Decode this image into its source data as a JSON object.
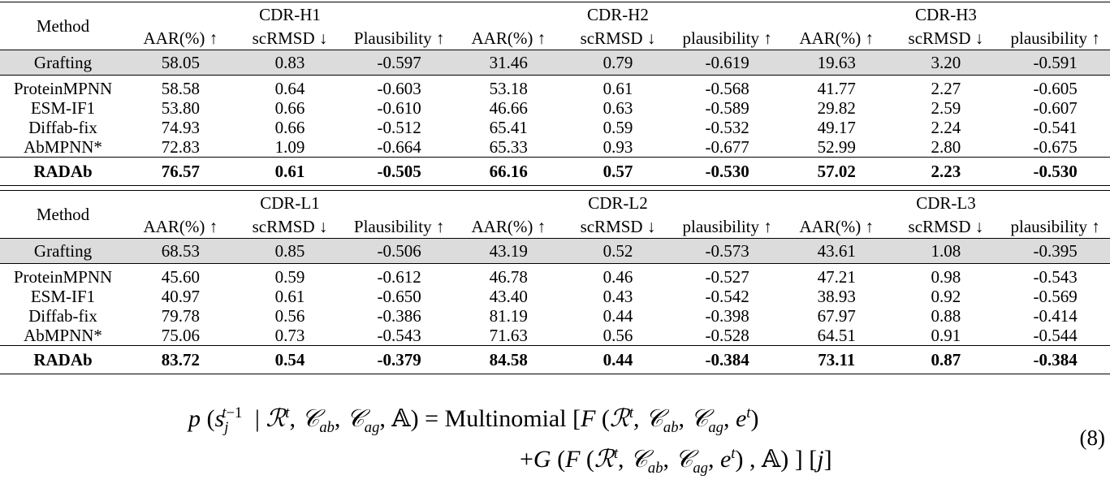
{
  "table_top": {
    "method_header": "Method",
    "groups": [
      "CDR-H1",
      "CDR-H2",
      "CDR-H3"
    ],
    "subheaders": [
      "AAR(%) ↑",
      "scRMSD ↓",
      "Plausibility ↑",
      "AAR(%) ↑",
      "scRMSD ↓",
      "plausibility ↑",
      "AAR(%) ↑",
      "scRMSD ↓",
      "plausibility ↑"
    ],
    "grafting": {
      "name": "Grafting",
      "values": [
        "58.05",
        "0.83",
        "-0.597",
        "31.46",
        "0.79",
        "-0.619",
        "19.63",
        "3.20",
        "-0.591"
      ]
    },
    "rows": [
      {
        "name": "ProteinMPNN",
        "values": [
          "58.58",
          "0.64",
          "-0.603",
          "53.18",
          "0.61",
          "-0.568",
          "41.77",
          "2.27",
          "-0.605"
        ]
      },
      {
        "name": "ESM-IF1",
        "values": [
          "53.80",
          "0.66",
          "-0.610",
          "46.66",
          "0.63",
          "-0.589",
          "29.82",
          "2.59",
          "-0.607"
        ]
      },
      {
        "name": "Diffab-fix",
        "values": [
          "74.93",
          "0.66",
          "-0.512",
          "65.41",
          "0.59",
          "-0.532",
          "49.17",
          "2.24",
          "-0.541"
        ]
      },
      {
        "name": "AbMPNN*",
        "values": [
          "72.83",
          "1.09",
          "-0.664",
          "65.33",
          "0.93",
          "-0.677",
          "52.99",
          "2.80",
          "-0.675"
        ]
      }
    ],
    "best": {
      "name": "RADAb",
      "values": [
        "76.57",
        "0.61",
        "-0.505",
        "66.16",
        "0.57",
        "-0.530",
        "57.02",
        "2.23",
        "-0.530"
      ]
    }
  },
  "table_bottom": {
    "method_header": "Method",
    "groups": [
      "CDR-L1",
      "CDR-L2",
      "CDR-L3"
    ],
    "subheaders": [
      "AAR(%) ↑",
      "scRMSD ↓",
      "Plausibility ↑",
      "AAR(%) ↑",
      "scRMSD ↓",
      "plausibility ↑",
      "AAR(%) ↑",
      "scRMSD ↓",
      "plausibility ↑"
    ],
    "grafting": {
      "name": "Grafting",
      "values": [
        "68.53",
        "0.85",
        "-0.506",
        "43.19",
        "0.52",
        "-0.573",
        "43.61",
        "1.08",
        "-0.395"
      ]
    },
    "rows": [
      {
        "name": "ProteinMPNN",
        "values": [
          "45.60",
          "0.59",
          "-0.612",
          "46.78",
          "0.46",
          "-0.527",
          "47.21",
          "0.98",
          "-0.543"
        ]
      },
      {
        "name": "ESM-IF1",
        "values": [
          "40.97",
          "0.61",
          "-0.650",
          "43.40",
          "0.43",
          "-0.542",
          "38.93",
          "0.92",
          "-0.569"
        ]
      },
      {
        "name": "Diffab-fix",
        "values": [
          "79.78",
          "0.56",
          "-0.386",
          "81.19",
          "0.44",
          "-0.398",
          "67.97",
          "0.88",
          "-0.414"
        ]
      },
      {
        "name": "AbMPNN*",
        "values": [
          "75.06",
          "0.73",
          "-0.543",
          "71.63",
          "0.56",
          "-0.528",
          "64.51",
          "0.91",
          "-0.544"
        ]
      }
    ],
    "best": {
      "name": "RADAb",
      "values": [
        "83.72",
        "0.54",
        "-0.379",
        "84.58",
        "0.44",
        "-0.384",
        "73.11",
        "0.87",
        "-0.384"
      ]
    }
  },
  "equation": {
    "number": "(8)"
  }
}
